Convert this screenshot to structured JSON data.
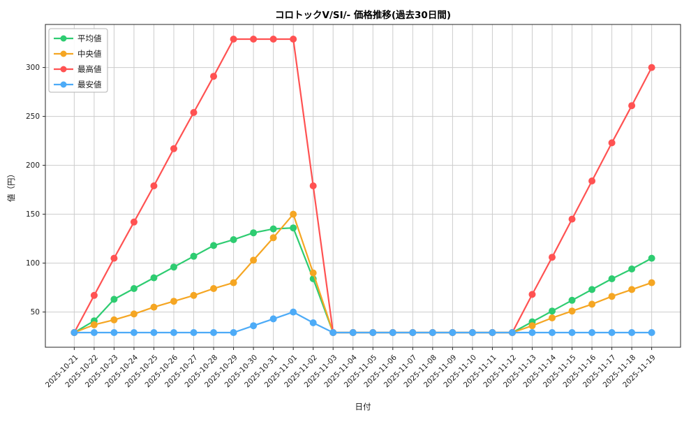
{
  "figure": {
    "title": "コロトックV/SI/- 価格推移(過去30日間)",
    "xlabel": "日付",
    "ylabel": "値（円）"
  },
  "chart_data": {
    "type": "line",
    "title": "コロトックV/SI/- 価格推移(過去30日間)",
    "xlabel": "日付",
    "ylabel": "値（円）",
    "grid": true,
    "legend_position": "upper-left",
    "grid_color": "#cccccc",
    "axis_color": "#262626",
    "text_color": "#1a1a1a",
    "ylim": [
      14,
      344
    ],
    "yticks": [
      50,
      100,
      150,
      200,
      250,
      300
    ],
    "x": [
      "2025-10-21",
      "2025-10-22",
      "2025-10-23",
      "2025-10-24",
      "2025-10-25",
      "2025-10-26",
      "2025-10-27",
      "2025-10-28",
      "2025-10-29",
      "2025-10-30",
      "2025-10-31",
      "2025-11-01",
      "2025-11-02",
      "2025-11-03",
      "2025-11-04",
      "2025-11-05",
      "2025-11-06",
      "2025-11-07",
      "2025-11-08",
      "2025-11-09",
      "2025-11-10",
      "2025-11-11",
      "2025-11-12",
      "2025-11-13",
      "2025-11-14",
      "2025-11-15",
      "2025-11-16",
      "2025-11-17",
      "2025-11-18",
      "2025-11-19"
    ],
    "series": [
      {
        "name": "平均値",
        "color": "#2ecc71",
        "values": [
          29,
          41,
          63,
          74,
          85,
          96,
          107,
          118,
          124,
          131,
          135,
          136,
          84,
          29,
          29,
          29,
          29,
          29,
          29,
          29,
          29,
          29,
          29,
          40,
          51,
          62,
          73,
          84,
          94,
          105
        ]
      },
      {
        "name": "中央値",
        "color": "#f5a623",
        "values": [
          29,
          37,
          42,
          48,
          55,
          61,
          67,
          74,
          80,
          103,
          126,
          150,
          90,
          29,
          29,
          29,
          29,
          29,
          29,
          29,
          29,
          29,
          29,
          36,
          44,
          51,
          58,
          66,
          73,
          80
        ]
      },
      {
        "name": "最高値",
        "color": "#ff5252",
        "values": [
          29,
          67,
          105,
          142,
          179,
          217,
          254,
          291,
          329,
          329,
          329,
          329,
          179,
          29,
          29,
          29,
          29,
          29,
          29,
          29,
          29,
          29,
          29,
          68,
          106,
          145,
          184,
          223,
          261,
          300
        ]
      },
      {
        "name": "最安値",
        "color": "#4dabf7",
        "values": [
          29,
          29,
          29,
          29,
          29,
          29,
          29,
          29,
          29,
          36,
          43,
          50,
          39,
          29,
          29,
          29,
          29,
          29,
          29,
          29,
          29,
          29,
          29,
          29,
          29,
          29,
          29,
          29,
          29,
          29
        ]
      }
    ]
  }
}
